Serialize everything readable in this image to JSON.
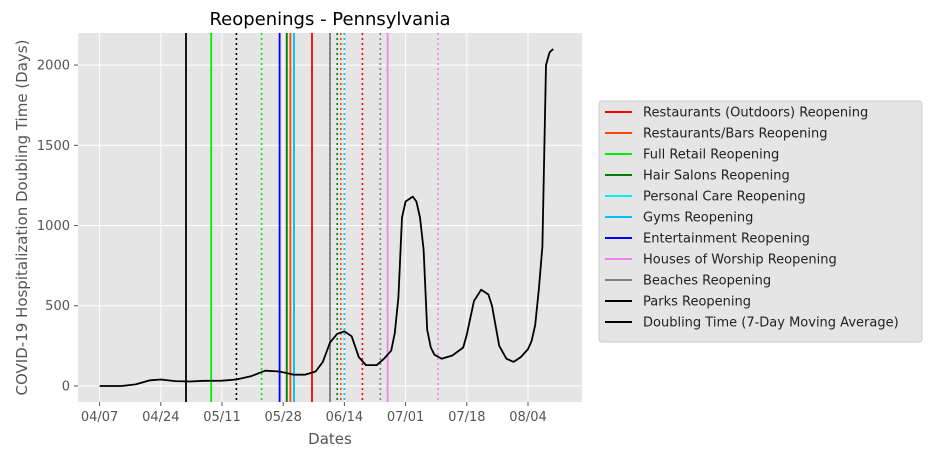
{
  "chart_data": {
    "type": "line",
    "title": "Reopenings - Pennsylvania",
    "xlabel": "Dates",
    "ylabel": "COVID-19 Hospitalization Doubling Time (Days)",
    "x_ticks": [
      "04/07",
      "04/24",
      "05/11",
      "05/28",
      "06/14",
      "07/01",
      "07/18",
      "08/04"
    ],
    "y_ticks": [
      0,
      500,
      1000,
      1500,
      2000
    ],
    "xlim": [
      "2020-04-01",
      "2020-08-19"
    ],
    "ylim": [
      -100,
      2200
    ],
    "grid": true,
    "legend_position": "right",
    "series": [
      {
        "name": "Doubling Time (7-Day Moving Average)",
        "color": "#000000",
        "points": [
          [
            "2020-04-07",
            0
          ],
          [
            "2020-04-13",
            0
          ],
          [
            "2020-04-17",
            10
          ],
          [
            "2020-04-21",
            35
          ],
          [
            "2020-04-24",
            40
          ],
          [
            "2020-04-28",
            30
          ],
          [
            "2020-05-02",
            28
          ],
          [
            "2020-05-06",
            32
          ],
          [
            "2020-05-11",
            33
          ],
          [
            "2020-05-15",
            40
          ],
          [
            "2020-05-19",
            60
          ],
          [
            "2020-05-23",
            95
          ],
          [
            "2020-05-27",
            90
          ],
          [
            "2020-05-31",
            70
          ],
          [
            "2020-06-03",
            70
          ],
          [
            "2020-06-06",
            90
          ],
          [
            "2020-06-08",
            150
          ],
          [
            "2020-06-10",
            270
          ],
          [
            "2020-06-12",
            325
          ],
          [
            "2020-06-14",
            340
          ],
          [
            "2020-06-16",
            310
          ],
          [
            "2020-06-18",
            180
          ],
          [
            "2020-06-20",
            130
          ],
          [
            "2020-06-23",
            130
          ],
          [
            "2020-06-25",
            170
          ],
          [
            "2020-06-27",
            220
          ],
          [
            "2020-06-28",
            330
          ],
          [
            "2020-06-29",
            550
          ],
          [
            "2020-06-30",
            1050
          ],
          [
            "2020-07-01",
            1150
          ],
          [
            "2020-07-03",
            1180
          ],
          [
            "2020-07-04",
            1150
          ],
          [
            "2020-07-05",
            1050
          ],
          [
            "2020-07-06",
            850
          ],
          [
            "2020-07-07",
            350
          ],
          [
            "2020-07-08",
            240
          ],
          [
            "2020-07-09",
            195
          ],
          [
            "2020-07-11",
            170
          ],
          [
            "2020-07-14",
            190
          ],
          [
            "2020-07-17",
            240
          ],
          [
            "2020-07-18",
            320
          ],
          [
            "2020-07-20",
            530
          ],
          [
            "2020-07-22",
            600
          ],
          [
            "2020-07-24",
            570
          ],
          [
            "2020-07-25",
            500
          ],
          [
            "2020-07-27",
            250
          ],
          [
            "2020-07-29",
            170
          ],
          [
            "2020-07-31",
            150
          ],
          [
            "2020-08-02",
            180
          ],
          [
            "2020-08-04",
            230
          ],
          [
            "2020-08-05",
            280
          ],
          [
            "2020-08-06",
            380
          ],
          [
            "2020-08-07",
            600
          ],
          [
            "2020-08-08",
            870
          ],
          [
            "2020-08-09",
            2000
          ],
          [
            "2020-08-10",
            2080
          ],
          [
            "2020-08-11",
            2100
          ]
        ]
      }
    ],
    "reopening_lines": [
      {
        "name": "Restaurants (Outdoors) Reopening",
        "color": "#ff0000",
        "dates": [
          {
            "date": "2020-06-05",
            "dashed": false
          },
          {
            "date": "2020-06-19",
            "dashed": true
          }
        ]
      },
      {
        "name": "Restaurants/Bars Reopening",
        "color": "#ff4500",
        "dates": [
          {
            "date": "2020-05-30",
            "dashed": false
          },
          {
            "date": "2020-06-13",
            "dashed": true
          }
        ]
      },
      {
        "name": "Full Retail Reopening",
        "color": "#00ee00",
        "dates": [
          {
            "date": "2020-05-08",
            "dashed": false
          },
          {
            "date": "2020-05-22",
            "dashed": true
          }
        ]
      },
      {
        "name": "Hair Salons Reopening",
        "color": "#008000",
        "dates": [
          {
            "date": "2020-05-29",
            "dashed": false
          },
          {
            "date": "2020-06-12",
            "dashed": true
          }
        ]
      },
      {
        "name": "Personal Care Reopening",
        "color": "#00eeee",
        "dates": [
          {
            "date": "2020-05-31",
            "dashed": false
          },
          {
            "date": "2020-06-14",
            "dashed": true
          }
        ]
      },
      {
        "name": "Gyms Reopening",
        "color": "#00bfff",
        "dates": [
          {
            "date": "2020-05-31",
            "dashed": false
          },
          {
            "date": "2020-06-14",
            "dashed": true
          }
        ]
      },
      {
        "name": "Entertainment Reopening",
        "color": "#0000ff",
        "dates": [
          {
            "date": "2020-05-27",
            "dashed": false
          },
          {
            "date": "2020-06-10",
            "dashed": true
          }
        ]
      },
      {
        "name": "Houses of Worship Reopening",
        "color": "#ee82ee",
        "dates": [
          {
            "date": "2020-06-26",
            "dashed": false
          },
          {
            "date": "2020-07-10",
            "dashed": true
          }
        ]
      },
      {
        "name": "Beaches Reopening",
        "color": "#808080",
        "dates": [
          {
            "date": "2020-06-10",
            "dashed": false
          },
          {
            "date": "2020-06-24",
            "dashed": true
          }
        ]
      },
      {
        "name": "Parks Reopening",
        "color": "#000000",
        "dates": [
          {
            "date": "2020-05-01",
            "dashed": false
          },
          {
            "date": "2020-05-15",
            "dashed": true
          }
        ]
      }
    ]
  }
}
